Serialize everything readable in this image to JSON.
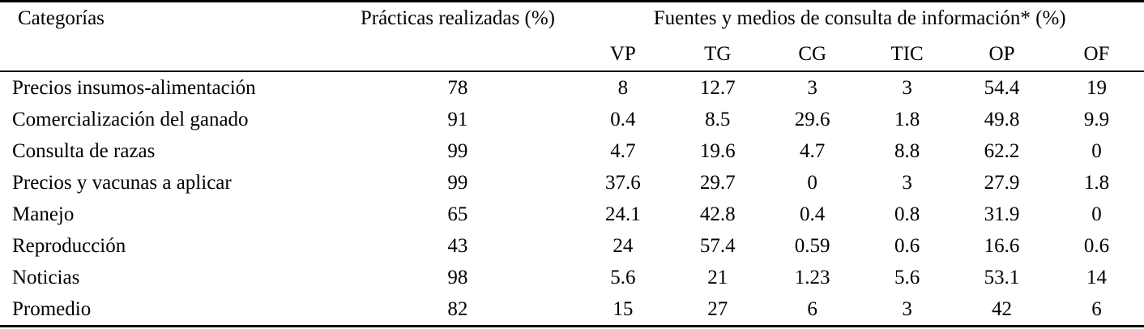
{
  "table": {
    "col1_header": "Categorías",
    "col2_header": "Prácticas realizadas (%)",
    "group_header": "Fuentes y medios de consulta de información* (%)",
    "sub_headers": [
      "VP",
      "TG",
      "CG",
      "TIC",
      "OP",
      "OF"
    ],
    "rows": [
      {
        "categoria": "Precios insumos-alimentación",
        "practicas": "78",
        "valores": [
          "8",
          "12.7",
          "3",
          "3",
          "54.4",
          "19"
        ]
      },
      {
        "categoria": "Comercialización del ganado",
        "practicas": "91",
        "valores": [
          "0.4",
          "8.5",
          "29.6",
          "1.8",
          "49.8",
          "9.9"
        ]
      },
      {
        "categoria": "Consulta de razas",
        "practicas": "99",
        "valores": [
          "4.7",
          "19.6",
          "4.7",
          "8.8",
          "62.2",
          "0"
        ]
      },
      {
        "categoria": "Precios y vacunas a aplicar",
        "practicas": "99",
        "valores": [
          "37.6",
          "29.7",
          "0",
          "3",
          "27.9",
          "1.8"
        ]
      },
      {
        "categoria": "Manejo",
        "practicas": "65",
        "valores": [
          "24.1",
          "42.8",
          "0.4",
          "0.8",
          "31.9",
          "0"
        ]
      },
      {
        "categoria": "Reproducción",
        "practicas": "43",
        "valores": [
          "24",
          "57.4",
          "0.59",
          "0.6",
          "16.6",
          "0.6"
        ]
      },
      {
        "categoria": "Noticias",
        "practicas": "98",
        "valores": [
          "5.6",
          "21",
          "1.23",
          "5.6",
          "53.1",
          "14"
        ]
      },
      {
        "categoria": "Promedio",
        "practicas": "82",
        "valores": [
          "15",
          "27",
          "6",
          "3",
          "42",
          "6"
        ]
      }
    ]
  }
}
